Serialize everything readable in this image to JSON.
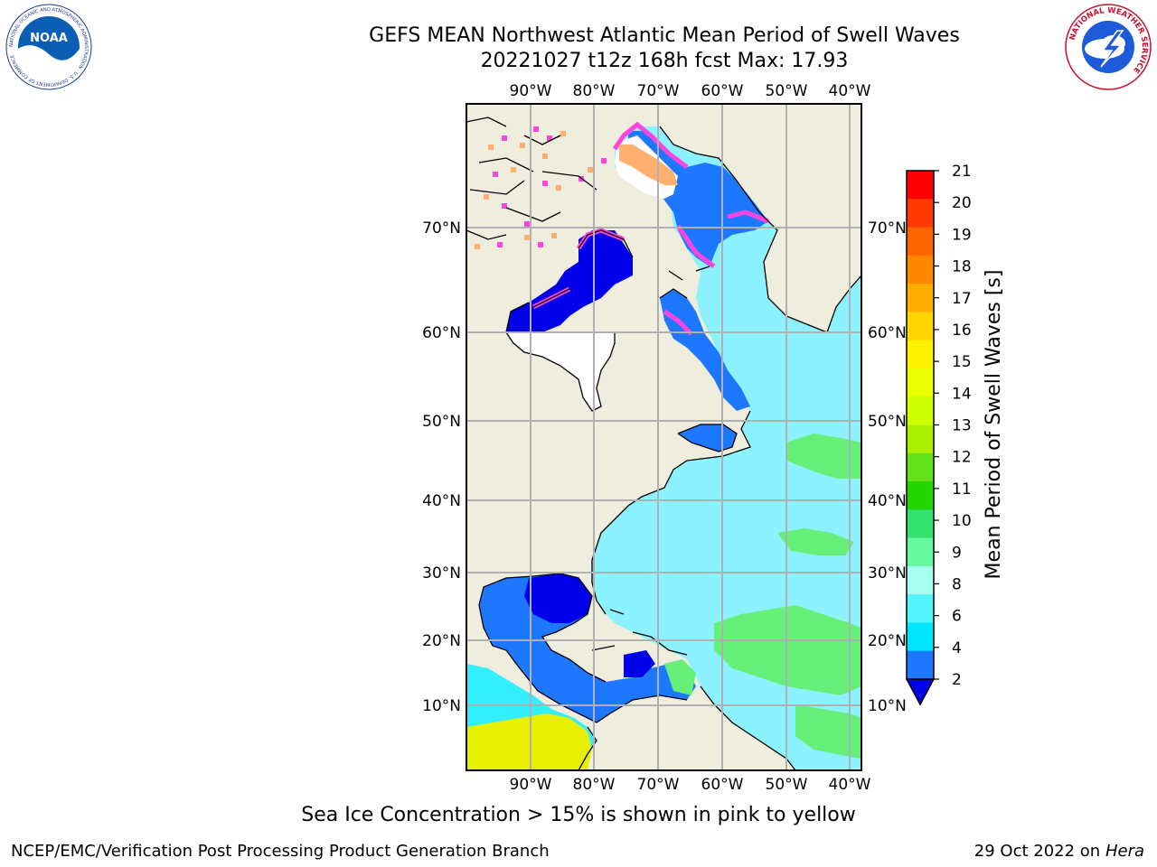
{
  "title": {
    "line1": "GEFS MEAN Northwest Atlantic Mean Period of Swell Waves",
    "line2": "20221027 t12z 168h fcst   Max: 17.93"
  },
  "map": {
    "lon_labels": [
      "90°W",
      "80°W",
      "70°W",
      "60°W",
      "50°W",
      "40°W"
    ],
    "lat_labels": [
      "70°N",
      "60°N",
      "50°N",
      "40°N",
      "30°N",
      "20°N",
      "10°N"
    ],
    "colors": {
      "land": "#efedde",
      "ocean_main": "#8cf2ff",
      "ocean_deep": "#33eeff",
      "short_period": "#1e78ff",
      "very_short": "#0000e8",
      "green": "#66f07a",
      "sea_ice_pink": "#ff44dd",
      "sea_ice_orange": "#ffb070",
      "ice_covered": "#ffffff",
      "grid": "#b0b0b0"
    }
  },
  "colorbar": {
    "label": "Mean Period of Swell Waves [s]",
    "ticks": [
      "21",
      "20",
      "19",
      "18",
      "17",
      "16",
      "15",
      "14",
      "13",
      "12",
      "11",
      "10",
      "9",
      "8",
      "6",
      "4",
      "2"
    ],
    "colors": [
      "#ff0000",
      "#ff3a00",
      "#ff6400",
      "#ff8800",
      "#ffab00",
      "#ffd400",
      "#fff200",
      "#eaff00",
      "#d0ff00",
      "#aaf000",
      "#66e01a",
      "#22d400",
      "#33e070",
      "#66f7a0",
      "#a8fff0",
      "#55f5ff",
      "#00e5ff",
      "#1e78ff"
    ],
    "under_color": "#0000e8"
  },
  "caption": "Sea Ice Concentration > 15% is shown in pink to yellow",
  "footer": {
    "left": "NCEP/EMC/Verification Post Processing Product Generation Branch",
    "right_prefix": "29 Oct 2022 on ",
    "right_italic": "Hera"
  },
  "logos": {
    "noaa_text": "NOAA",
    "noaa_ring_text": "NATIONAL OCEANIC AND ATMOSPHERIC ADMINISTRATION · U.S. DEPARTMENT OF COMMERCE",
    "nws_ring_text": "NATIONAL WEATHER SERVICE"
  }
}
